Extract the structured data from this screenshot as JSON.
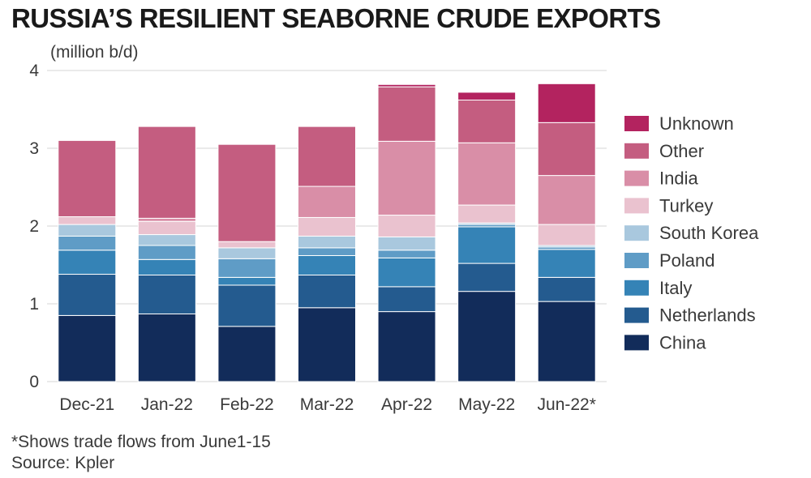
{
  "title": "RUSSIA’S RESILIENT SEABORNE CRUDE EXPORTS",
  "unit": "(million b/d)",
  "footnote": "*Shows trade flows from June1-15",
  "source": "Source: Kpler",
  "chart_data": {
    "type": "bar",
    "stacked": true,
    "categories": [
      "Dec-21",
      "Jan-22",
      "Feb-22",
      "Mar-22",
      "Apr-22",
      "May-22",
      "Jun-22*"
    ],
    "ylim": [
      0,
      4
    ],
    "yticks": [
      0,
      1,
      2,
      3,
      4
    ],
    "grid": true,
    "legend_position": "right",
    "series": [
      {
        "name": "China",
        "color": "#122c5a",
        "values": [
          0.85,
          0.87,
          0.71,
          0.95,
          0.9,
          1.16,
          1.03
        ]
      },
      {
        "name": "Netherlands",
        "color": "#245b8f",
        "values": [
          0.53,
          0.5,
          0.53,
          0.42,
          0.32,
          0.36,
          0.31
        ]
      },
      {
        "name": "Italy",
        "color": "#3583b6",
        "values": [
          0.31,
          0.2,
          0.1,
          0.25,
          0.37,
          0.47,
          0.36
        ]
      },
      {
        "name": "Poland",
        "color": "#5f9cc6",
        "values": [
          0.18,
          0.18,
          0.24,
          0.1,
          0.1,
          0.03,
          0.03
        ]
      },
      {
        "name": "South Korea",
        "color": "#a9c8de",
        "values": [
          0.15,
          0.14,
          0.14,
          0.15,
          0.17,
          0.02,
          0.02
        ]
      },
      {
        "name": "Turkey",
        "color": "#eac2cf",
        "values": [
          0.1,
          0.17,
          0.08,
          0.24,
          0.28,
          0.23,
          0.27
        ]
      },
      {
        "name": "India",
        "color": "#d98ea7",
        "values": [
          0.0,
          0.04,
          0.0,
          0.4,
          0.95,
          0.8,
          0.63
        ]
      },
      {
        "name": "Other",
        "color": "#c45d80",
        "values": [
          0.98,
          1.18,
          1.25,
          0.77,
          0.7,
          0.55,
          0.68
        ]
      },
      {
        "name": "Unknown",
        "color": "#b3235f",
        "values": [
          0.0,
          0.0,
          0.0,
          0.0,
          0.03,
          0.1,
          0.5
        ]
      }
    ]
  }
}
